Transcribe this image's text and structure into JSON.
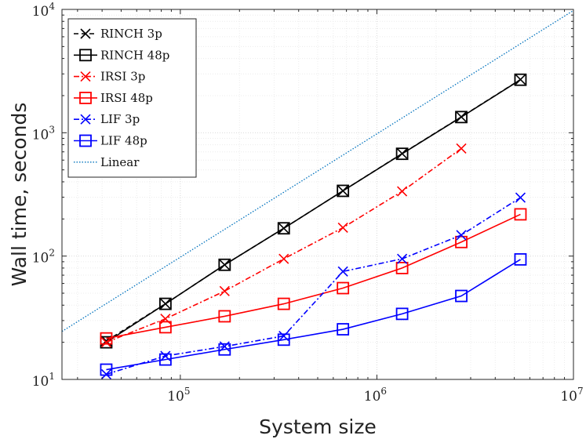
{
  "chart_data": {
    "type": "line",
    "xscale": "log",
    "yscale": "log",
    "xlabel": "System size",
    "ylabel": "Wall time, seconds",
    "xlim": [
      25000,
      10000000
    ],
    "ylim": [
      10,
      10000
    ],
    "grid": true,
    "legend_position": "top-left",
    "x_ticks": [
      {
        "base": "10",
        "exp": "5",
        "value": 100000
      },
      {
        "base": "10",
        "exp": "6",
        "value": 1000000
      },
      {
        "base": "10",
        "exp": "7",
        "value": 10000000
      }
    ],
    "y_ticks": [
      {
        "base": "10",
        "exp": "1",
        "value": 10
      },
      {
        "base": "10",
        "exp": "2",
        "value": 100
      },
      {
        "base": "10",
        "exp": "3",
        "value": 1000
      },
      {
        "base": "10",
        "exp": "4",
        "value": 10000
      }
    ],
    "x": [
      42000,
      84000,
      168000,
      336000,
      672000,
      1344000,
      2688000,
      5376000
    ],
    "series": [
      {
        "name": "RINCH 3p",
        "color": "#000000",
        "marker": "x",
        "dash": "6,4",
        "values": [
          20.5,
          41,
          85,
          168,
          338,
          678,
          1345,
          2700
        ]
      },
      {
        "name": "RINCH 48p",
        "color": "#000000",
        "marker": "square",
        "dash": "",
        "values": [
          20,
          41,
          85,
          168,
          338,
          675,
          1340,
          2690
        ]
      },
      {
        "name": "IRSI 3p",
        "color": "#ff0000",
        "marker": "x",
        "dash": "7,3,2,3",
        "values": [
          20,
          31,
          52,
          95,
          170,
          335,
          745,
          null
        ]
      },
      {
        "name": "IRSI 48p",
        "color": "#ff0000",
        "marker": "square",
        "dash": "",
        "values": [
          21.5,
          26.5,
          32.5,
          41,
          55,
          80,
          130,
          218
        ]
      },
      {
        "name": "LIF 3p",
        "color": "#0000ff",
        "marker": "x",
        "dash": "7,3,2,3",
        "values": [
          11,
          15.5,
          18.5,
          22.5,
          75,
          95,
          148,
          298
        ]
      },
      {
        "name": "LIF 48p",
        "color": "#0000ff",
        "marker": "square",
        "dash": "",
        "values": [
          12,
          14.5,
          17.5,
          21,
          25.5,
          34,
          47.5,
          94
        ]
      },
      {
        "name": "Linear",
        "color": "#0072bd",
        "marker": "none",
        "dash": "1.5,2",
        "x": [
          25000,
          10000000
        ],
        "values": [
          24.5,
          9800
        ]
      }
    ]
  }
}
